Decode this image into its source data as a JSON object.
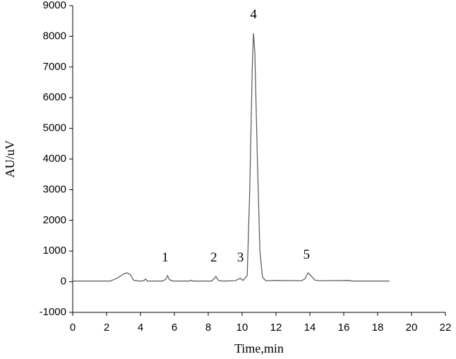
{
  "chart_data": {
    "type": "line",
    "x_label": "Time,min",
    "y_label": "AU/uV",
    "x": [
      0,
      2.2,
      2.4,
      2.6,
      2.8,
      3.0,
      3.2,
      3.4,
      3.6,
      4.0,
      4.2,
      4.3,
      4.4,
      5.3,
      5.5,
      5.6,
      5.7,
      5.9,
      6.9,
      7.0,
      7.1,
      8.2,
      8.35,
      8.45,
      8.6,
      8.8,
      9.6,
      9.8,
      9.9,
      10.05,
      10.3,
      10.45,
      10.6,
      10.67,
      10.75,
      10.9,
      11.05,
      11.2,
      11.4,
      12,
      13.5,
      13.7,
      13.9,
      14.05,
      14.3,
      14.6,
      16.3,
      16.5,
      18.7
    ],
    "values": [
      20,
      20,
      60,
      110,
      180,
      250,
      290,
      230,
      40,
      20,
      30,
      90,
      20,
      20,
      80,
      200,
      70,
      20,
      20,
      50,
      20,
      20,
      100,
      170,
      40,
      20,
      30,
      90,
      110,
      40,
      200,
      3000,
      7000,
      8100,
      7500,
      4000,
      1000,
      150,
      30,
      40,
      30,
      90,
      290,
      200,
      50,
      30,
      40,
      20,
      20
    ],
    "color": "#555555",
    "annotations": [
      {
        "text": "1",
        "x": 5.46,
        "y": 760
      },
      {
        "text": "2",
        "x": 8.33,
        "y": 760
      },
      {
        "text": "3",
        "x": 9.9,
        "y": 760
      },
      {
        "text": "4",
        "x": 10.67,
        "y": 8690
      },
      {
        "text": "5",
        "x": 13.8,
        "y": 850
      }
    ],
    "xlim": [
      0,
      22
    ],
    "xticks": [
      0,
      2,
      4,
      6,
      8,
      10,
      12,
      14,
      16,
      18,
      20,
      22
    ],
    "ylim": [
      -1000,
      9000
    ],
    "yticks": [
      -1000,
      0,
      1000,
      2000,
      3000,
      4000,
      5000,
      6000,
      7000,
      8000,
      9000
    ],
    "grid": false
  }
}
